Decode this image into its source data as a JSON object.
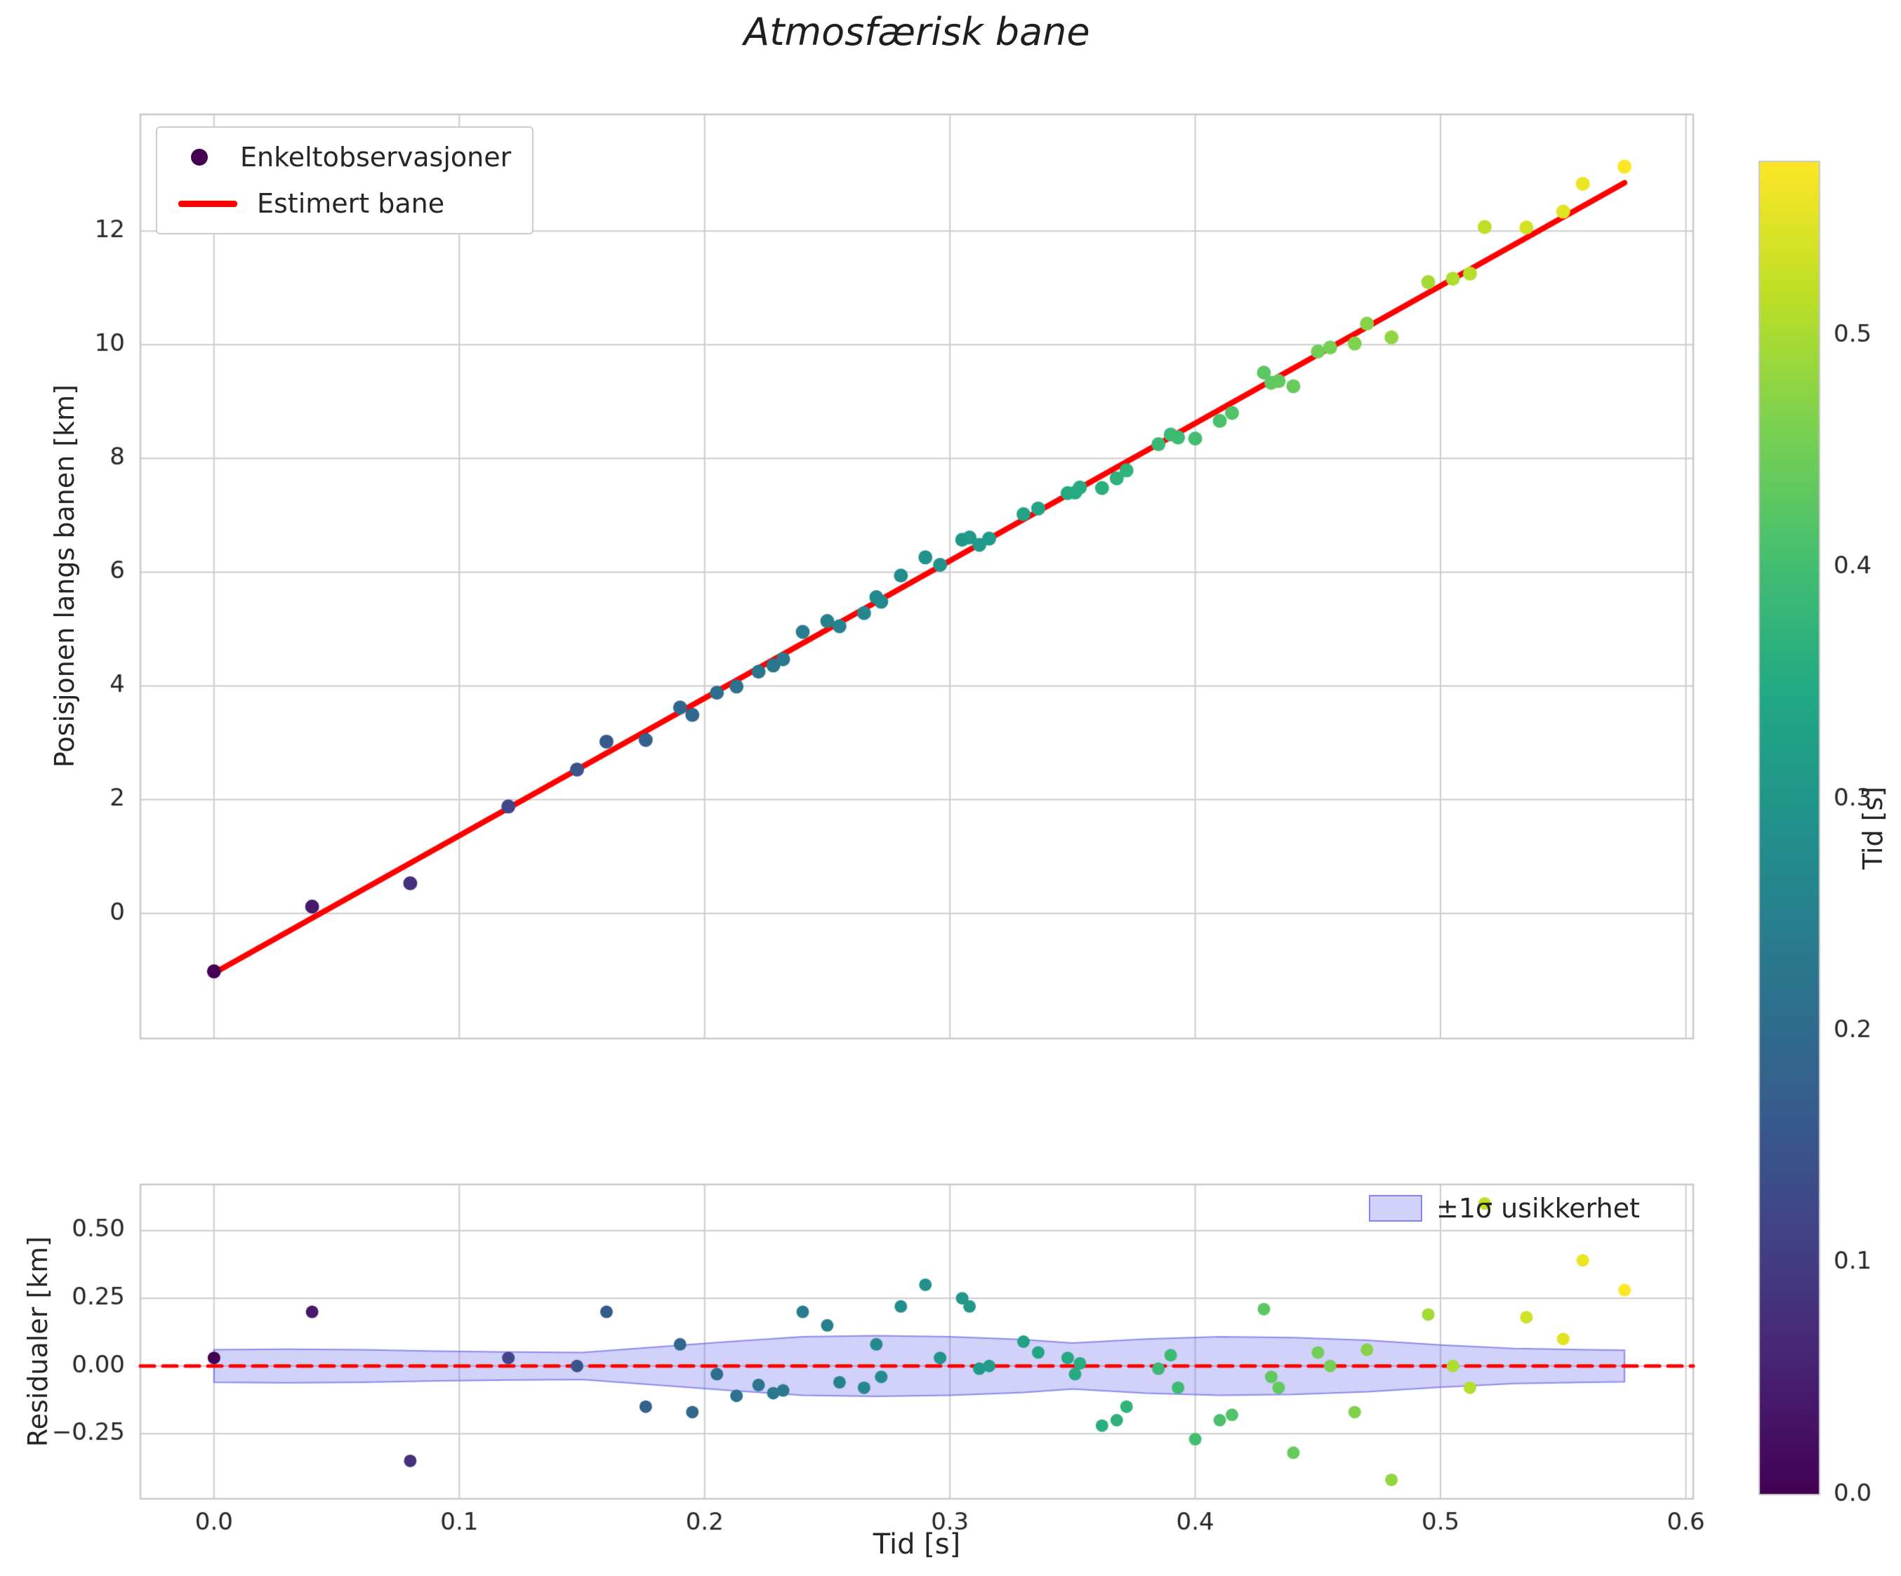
{
  "title": "Atmosfærisk bane",
  "colors": {
    "fit_line": "#ff0000",
    "zero_line": "#ff0000",
    "band_fill": "rgba(90,90,235,0.28)",
    "band_edge": "rgba(90,90,235,0.65)",
    "grid": "#cccccc",
    "spine": "#c8c8c8",
    "text": "#262626",
    "legend_marker": "#440154",
    "viridis": [
      "#440154",
      "#482475",
      "#414487",
      "#355f8d",
      "#2a788e",
      "#21918c",
      "#22a884",
      "#44bf70",
      "#7ad151",
      "#bddf26",
      "#fde725"
    ]
  },
  "chart_data": [
    {
      "type": "scatter",
      "title": "Atmosfærisk bane",
      "xlabel": "",
      "ylabel": "Posisjonen langs banen [km]",
      "xlim": [
        -0.03,
        0.603
      ],
      "ylim": [
        -2.2,
        14.05
      ],
      "grid": true,
      "xticks": [
        0.0,
        0.1,
        0.2,
        0.3,
        0.4,
        0.5,
        0.6
      ],
      "yticks": [
        0,
        2,
        4,
        6,
        8,
        10,
        12
      ],
      "ytick_labels": [
        "0",
        "2",
        "4",
        "6",
        "8",
        "10",
        "12"
      ],
      "legend": [
        "Enkeltobservasjoner",
        "Estimert bane"
      ],
      "legend_position": "upper left",
      "fit": {
        "intercept": -1.05,
        "slope": 24.17,
        "t_min": 0.0,
        "t_max": 0.575
      },
      "points": [
        [
          0.0,
          -1.02
        ],
        [
          0.04,
          0.12
        ],
        [
          0.08,
          0.53
        ],
        [
          0.12,
          1.88
        ],
        [
          0.148,
          2.53
        ],
        [
          0.16,
          3.02
        ],
        [
          0.176,
          3.05
        ],
        [
          0.19,
          3.62
        ],
        [
          0.195,
          3.49
        ],
        [
          0.205,
          3.88
        ],
        [
          0.213,
          3.99
        ],
        [
          0.222,
          4.25
        ],
        [
          0.228,
          4.36
        ],
        [
          0.232,
          4.47
        ],
        [
          0.24,
          4.95
        ],
        [
          0.25,
          5.14
        ],
        [
          0.255,
          5.05
        ],
        [
          0.265,
          5.28
        ],
        [
          0.27,
          5.56
        ],
        [
          0.272,
          5.48
        ],
        [
          0.28,
          5.94
        ],
        [
          0.29,
          6.26
        ],
        [
          0.296,
          6.13
        ],
        [
          0.305,
          6.57
        ],
        [
          0.308,
          6.61
        ],
        [
          0.312,
          6.48
        ],
        [
          0.316,
          6.59
        ],
        [
          0.33,
          7.02
        ],
        [
          0.336,
          7.12
        ],
        [
          0.348,
          7.39
        ],
        [
          0.351,
          7.4
        ],
        [
          0.353,
          7.49
        ],
        [
          0.362,
          7.48
        ],
        [
          0.368,
          7.65
        ],
        [
          0.372,
          7.79
        ],
        [
          0.385,
          8.25
        ],
        [
          0.39,
          8.42
        ],
        [
          0.393,
          8.37
        ],
        [
          0.4,
          8.35
        ],
        [
          0.41,
          8.66
        ],
        [
          0.415,
          8.8
        ],
        [
          0.428,
          9.51
        ],
        [
          0.431,
          9.33
        ],
        [
          0.434,
          9.36
        ],
        [
          0.44,
          9.27
        ],
        [
          0.45,
          9.88
        ],
        [
          0.455,
          9.95
        ],
        [
          0.465,
          10.02
        ],
        [
          0.47,
          10.37
        ],
        [
          0.48,
          10.13
        ],
        [
          0.495,
          11.1
        ],
        [
          0.505,
          11.16
        ],
        [
          0.512,
          11.25
        ],
        [
          0.518,
          12.07
        ],
        [
          0.535,
          12.06
        ],
        [
          0.55,
          12.34
        ],
        [
          0.558,
          12.83
        ],
        [
          0.575,
          13.13
        ]
      ]
    },
    {
      "type": "scatter",
      "xlabel": "Tid [s]",
      "ylabel": "Residualer [km]",
      "xlim": [
        -0.03,
        0.603
      ],
      "ylim": [
        -0.49,
        0.67
      ],
      "grid": true,
      "xticks": [
        0.0,
        0.1,
        0.2,
        0.3,
        0.4,
        0.5,
        0.6
      ],
      "xtick_labels": [
        "0.0",
        "0.1",
        "0.2",
        "0.3",
        "0.4",
        "0.5",
        "0.6"
      ],
      "yticks": [
        -0.25,
        0.0,
        0.25,
        0.5
      ],
      "ytick_labels": [
        "−0.25",
        "0.00",
        "0.25",
        "0.50"
      ],
      "legend": [
        "±1σ usikkerhet"
      ],
      "legend_position": "upper right",
      "zero_line": 0.0,
      "band": {
        "t": [
          0.0,
          0.03,
          0.06,
          0.09,
          0.12,
          0.15,
          0.18,
          0.21,
          0.24,
          0.27,
          0.3,
          0.33,
          0.35,
          0.38,
          0.41,
          0.44,
          0.47,
          0.5,
          0.53,
          0.56,
          0.575
        ],
        "halfwidth": [
          0.06,
          0.062,
          0.06,
          0.055,
          0.052,
          0.05,
          0.07,
          0.09,
          0.108,
          0.112,
          0.108,
          0.098,
          0.085,
          0.1,
          0.108,
          0.105,
          0.095,
          0.078,
          0.065,
          0.06,
          0.058
        ]
      },
      "points": [
        [
          0.0,
          0.03
        ],
        [
          0.04,
          0.2
        ],
        [
          0.08,
          -0.35
        ],
        [
          0.12,
          0.03
        ],
        [
          0.148,
          0.0
        ],
        [
          0.16,
          0.2
        ],
        [
          0.176,
          -0.15
        ],
        [
          0.19,
          0.08
        ],
        [
          0.195,
          -0.17
        ],
        [
          0.205,
          -0.03
        ],
        [
          0.213,
          -0.11
        ],
        [
          0.222,
          -0.07
        ],
        [
          0.228,
          -0.1
        ],
        [
          0.232,
          -0.09
        ],
        [
          0.24,
          0.2
        ],
        [
          0.25,
          0.15
        ],
        [
          0.255,
          -0.06
        ],
        [
          0.265,
          -0.08
        ],
        [
          0.27,
          0.08
        ],
        [
          0.272,
          -0.04
        ],
        [
          0.28,
          0.22
        ],
        [
          0.29,
          0.3
        ],
        [
          0.296,
          0.03
        ],
        [
          0.305,
          0.25
        ],
        [
          0.308,
          0.22
        ],
        [
          0.312,
          -0.01
        ],
        [
          0.316,
          0.0
        ],
        [
          0.33,
          0.09
        ],
        [
          0.336,
          0.05
        ],
        [
          0.348,
          0.03
        ],
        [
          0.351,
          -0.03
        ],
        [
          0.353,
          0.01
        ],
        [
          0.362,
          -0.22
        ],
        [
          0.368,
          -0.2
        ],
        [
          0.372,
          -0.15
        ],
        [
          0.385,
          -0.01
        ],
        [
          0.39,
          0.04
        ],
        [
          0.393,
          -0.08
        ],
        [
          0.4,
          -0.27
        ],
        [
          0.41,
          -0.2
        ],
        [
          0.415,
          -0.18
        ],
        [
          0.428,
          0.21
        ],
        [
          0.431,
          -0.04
        ],
        [
          0.434,
          -0.08
        ],
        [
          0.44,
          -0.32
        ],
        [
          0.45,
          0.05
        ],
        [
          0.455,
          0.0
        ],
        [
          0.465,
          -0.17
        ],
        [
          0.47,
          0.06
        ],
        [
          0.48,
          -0.42
        ],
        [
          0.495,
          0.19
        ],
        [
          0.505,
          0.0
        ],
        [
          0.512,
          -0.08
        ],
        [
          0.518,
          0.6
        ],
        [
          0.535,
          0.18
        ],
        [
          0.55,
          0.1
        ],
        [
          0.558,
          0.39
        ],
        [
          0.575,
          0.28
        ]
      ]
    },
    {
      "type": "colorbar",
      "label": "Tid [s]",
      "range": [
        0.0,
        0.575
      ],
      "ticks": [
        0.0,
        0.1,
        0.2,
        0.3,
        0.4,
        0.5
      ],
      "tick_labels": [
        "0.0",
        "0.1",
        "0.2",
        "0.3",
        "0.4",
        "0.5"
      ]
    }
  ]
}
